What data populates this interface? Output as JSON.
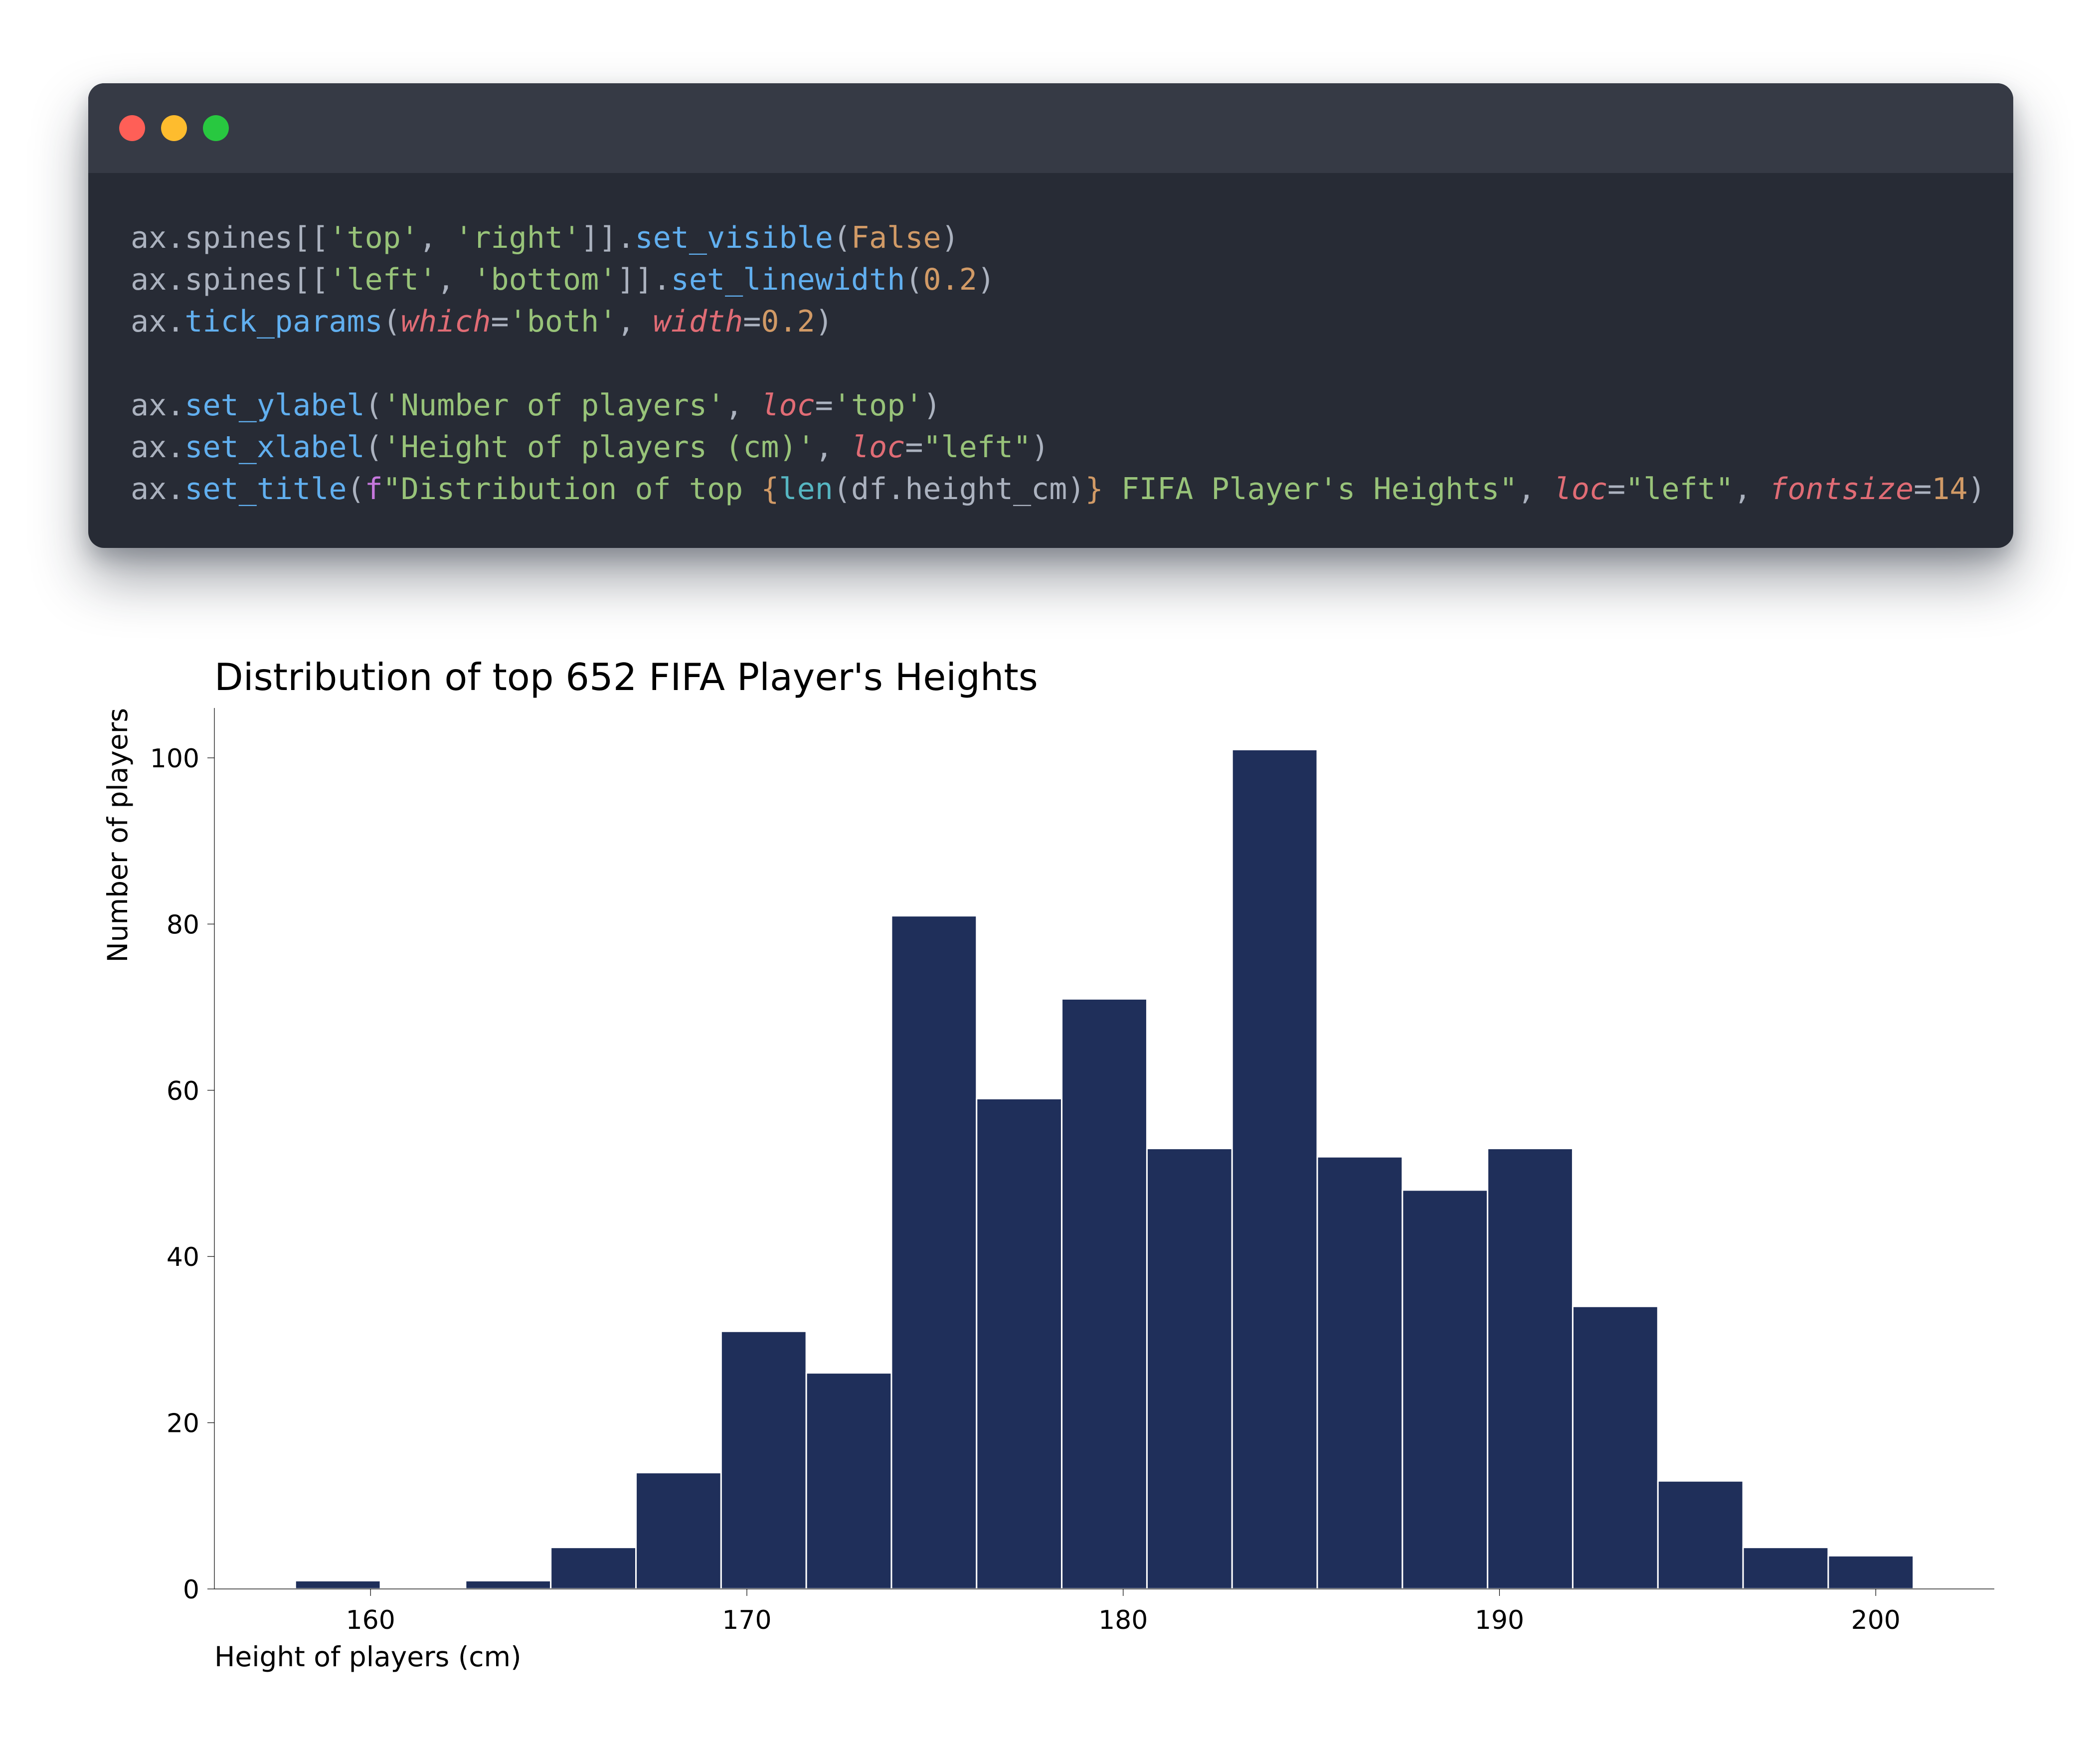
{
  "window": {
    "controls": [
      {
        "name": "close",
        "color": "#ff5f57"
      },
      {
        "name": "minimize",
        "color": "#febc2e"
      },
      {
        "name": "maximize",
        "color": "#28c840"
      }
    ],
    "code_lines": [
      [
        [
          "plain",
          "ax.spines[["
        ],
        [
          "str",
          "'top'"
        ],
        [
          "plain",
          ", "
        ],
        [
          "str",
          "'right'"
        ],
        [
          "plain",
          "]]."
        ],
        [
          "fn",
          "set_visible"
        ],
        [
          "plain",
          "("
        ],
        [
          "num",
          "False"
        ],
        [
          "plain",
          ")"
        ]
      ],
      [
        [
          "plain",
          "ax.spines[["
        ],
        [
          "str",
          "'left'"
        ],
        [
          "plain",
          ", "
        ],
        [
          "str",
          "'bottom'"
        ],
        [
          "plain",
          "]]."
        ],
        [
          "fn",
          "set_linewidth"
        ],
        [
          "plain",
          "("
        ],
        [
          "num",
          "0.2"
        ],
        [
          "plain",
          ")"
        ]
      ],
      [
        [
          "plain",
          "ax."
        ],
        [
          "fn",
          "tick_params"
        ],
        [
          "plain",
          "("
        ],
        [
          "kw",
          "which"
        ],
        [
          "plain",
          "="
        ],
        [
          "str",
          "'both'"
        ],
        [
          "plain",
          ", "
        ],
        [
          "kw",
          "width"
        ],
        [
          "plain",
          "="
        ],
        [
          "num",
          "0.2"
        ],
        [
          "plain",
          ")"
        ]
      ],
      [],
      [
        [
          "plain",
          "ax."
        ],
        [
          "fn",
          "set_ylabel"
        ],
        [
          "plain",
          "("
        ],
        [
          "str",
          "'Number of players'"
        ],
        [
          "plain",
          ", "
        ],
        [
          "kw",
          "loc"
        ],
        [
          "plain",
          "="
        ],
        [
          "str",
          "'top'"
        ],
        [
          "plain",
          ")"
        ]
      ],
      [
        [
          "plain",
          "ax."
        ],
        [
          "fn",
          "set_xlabel"
        ],
        [
          "plain",
          "("
        ],
        [
          "str",
          "'Height of players (cm)'"
        ],
        [
          "plain",
          ", "
        ],
        [
          "kw",
          "loc"
        ],
        [
          "plain",
          "="
        ],
        [
          "str",
          "\"left\""
        ],
        [
          "plain",
          ")"
        ]
      ],
      [
        [
          "plain",
          "ax."
        ],
        [
          "fn",
          "set_title"
        ],
        [
          "plain",
          "("
        ],
        [
          "pre",
          "f"
        ],
        [
          "str",
          "\"Distribution of top "
        ],
        [
          "brace",
          "{"
        ],
        [
          "builtin",
          "len"
        ],
        [
          "plain",
          "(df.height_cm)"
        ],
        [
          "brace",
          "}"
        ],
        [
          "str",
          " FIFA Player's Heights\""
        ],
        [
          "plain",
          ", "
        ],
        [
          "kw",
          "loc"
        ],
        [
          "plain",
          "="
        ],
        [
          "str",
          "\"left\""
        ],
        [
          "plain",
          ", "
        ],
        [
          "kw",
          "fontsize"
        ],
        [
          "plain",
          "="
        ],
        [
          "num",
          "14"
        ],
        [
          "plain",
          ")"
        ]
      ]
    ],
    "colors": {
      "plain": "#abb2bf",
      "str": "#98c379",
      "fn": "#61afef",
      "kw": "#e06c75",
      "num": "#d19a66",
      "brace": "#d19a66",
      "pre": "#c678dd",
      "builtin": "#56b6c2"
    }
  },
  "chart_data": {
    "type": "bar",
    "title": "Distribution of top 652 FIFA Player's Heights",
    "xlabel": "Height of players (cm)",
    "ylabel": "Number of players",
    "bar_color": "#1f2f5a",
    "bin_edges": [
      158.0,
      160.263,
      162.526,
      164.789,
      167.053,
      169.316,
      171.579,
      173.842,
      176.105,
      178.368,
      180.632,
      182.895,
      185.158,
      187.421,
      189.684,
      191.947,
      194.211,
      196.474,
      198.737,
      201.0
    ],
    "values": [
      1,
      0,
      1,
      5,
      14,
      31,
      26,
      81,
      59,
      71,
      53,
      101,
      52,
      48,
      53,
      34,
      13,
      5,
      4
    ],
    "xlim": [
      155.85,
      203.15
    ],
    "ylim": [
      0,
      106
    ],
    "xticks": [
      160,
      170,
      180,
      190,
      200
    ],
    "yticks": [
      0,
      20,
      40,
      60,
      80,
      100
    ],
    "grid": false,
    "legend": "none"
  }
}
